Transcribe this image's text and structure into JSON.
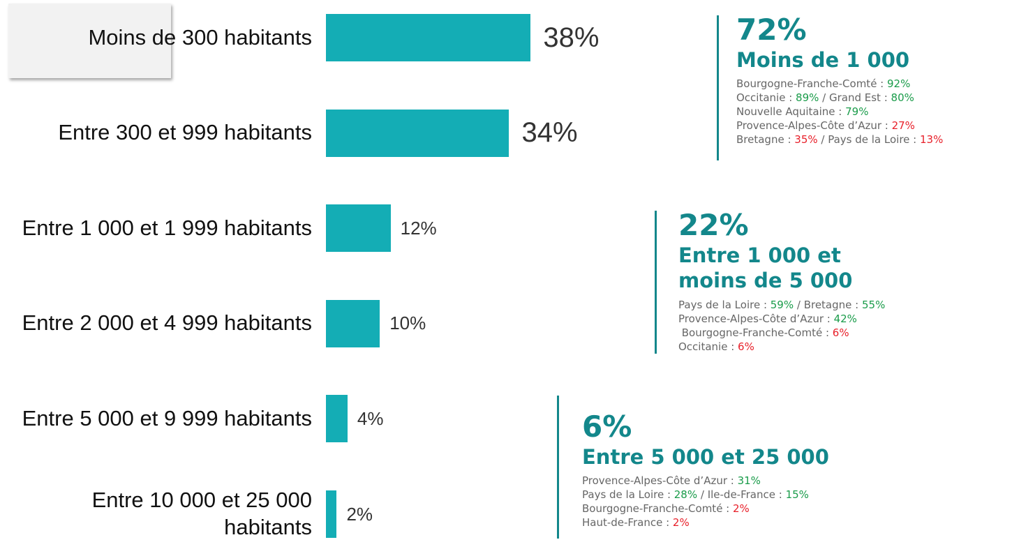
{
  "chart_data": {
    "type": "bar",
    "orientation": "horizontal",
    "color": "#14adb5",
    "categories": [
      "Moins de 300 habitants",
      "Entre 300 et 999 habitants",
      "Entre 1 000 et 1 999 habitants",
      "Entre 2 000 et 4 999 habitants",
      "Entre 5 000 et 9 999 habitants",
      "Entre 10 000 et 25 000 habitants"
    ],
    "values": [
      38,
      34,
      12,
      10,
      4,
      2
    ],
    "value_labels": [
      "38%",
      "34%",
      "12%",
      "10%",
      "4%",
      "2%"
    ],
    "highlight": 0,
    "annotations": [
      {
        "figure": "72%",
        "title": "Moins de 1 000",
        "details": [
          [
            {
              "text": "Bourgogne-Franche-Comté : "
            },
            {
              "text": "92%",
              "color": "#1a9c4a"
            }
          ],
          [
            {
              "text": "Occitanie : "
            },
            {
              "text": "89%",
              "color": "#1a9c4a"
            },
            {
              "text": " / Grand Est : "
            },
            {
              "text": "80%",
              "color": "#1a9c4a"
            }
          ],
          [
            {
              "text": "Nouvelle Aquitaine : "
            },
            {
              "text": "79%",
              "color": "#1a9c4a"
            }
          ],
          [
            {
              "text": "Provence-Alpes-Côte d’Azur : "
            },
            {
              "text": "27%",
              "color": "#e8202a"
            }
          ],
          [
            {
              "text": "Bretagne : "
            },
            {
              "text": "35%",
              "color": "#e8202a"
            },
            {
              "text": " / Pays de la Loire : "
            },
            {
              "text": "13%",
              "color": "#e8202a"
            }
          ]
        ]
      },
      {
        "figure": "22%",
        "title": "Entre 1 000 et moins de 5 000",
        "details": [
          [
            {
              "text": "Pays de la Loire : "
            },
            {
              "text": "59%",
              "color": "#1a9c4a"
            },
            {
              "text": " / Bretagne : "
            },
            {
              "text": "55%",
              "color": "#1a9c4a"
            }
          ],
          [
            {
              "text": "Provence-Alpes-Côte d’Azur : "
            },
            {
              "text": "42%",
              "color": "#1a9c4a"
            }
          ],
          [
            {
              "text": " Bourgogne-Franche-Comté : "
            },
            {
              "text": "6%",
              "color": "#e8202a"
            }
          ],
          [
            {
              "text": "Occitanie : "
            },
            {
              "text": "6%",
              "color": "#e8202a"
            }
          ]
        ]
      },
      {
        "figure": "6%",
        "title": "Entre 5 000 et 25 000",
        "details": [
          [
            {
              "text": "Provence-Alpes-Côte d’Azur : "
            },
            {
              "text": "31%",
              "color": "#1a9c4a"
            }
          ],
          [
            {
              "text": "Pays de la Loire : "
            },
            {
              "text": "28%",
              "color": "#1a9c4a"
            },
            {
              "text": " / Ile-de-France : "
            },
            {
              "text": "15%",
              "color": "#1a9c4a"
            }
          ],
          [
            {
              "text": "Bourgogne-Franche-Comté : "
            },
            {
              "text": "2%",
              "color": "#e8202a"
            }
          ],
          [
            {
              "text": "Haut-de-France : "
            },
            {
              "text": "2%",
              "color": "#e8202a"
            }
          ]
        ]
      }
    ]
  }
}
